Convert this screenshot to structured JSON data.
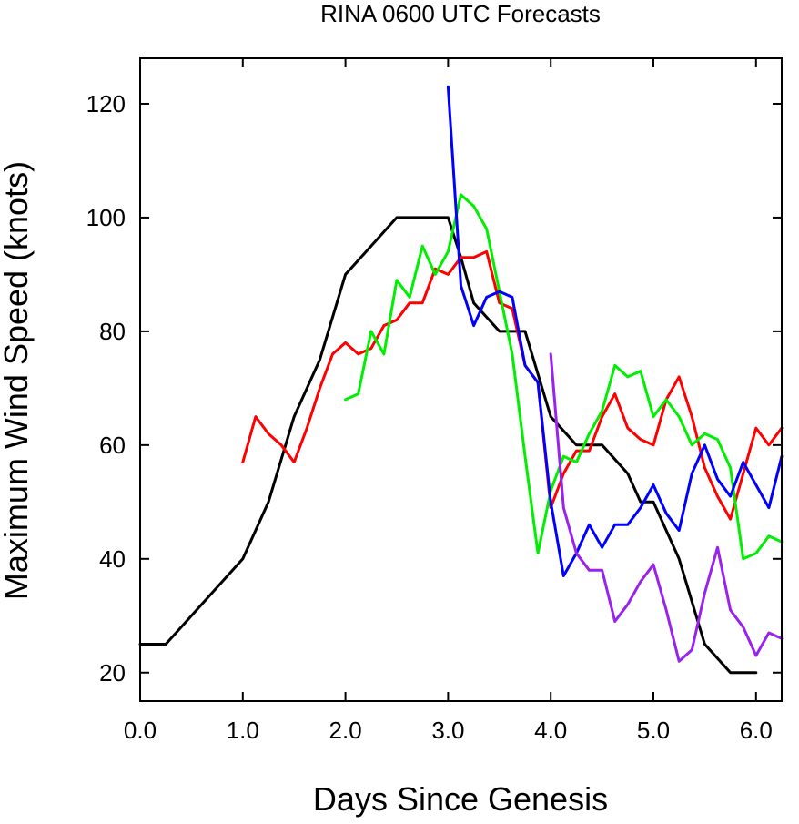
{
  "chart_data": {
    "type": "line",
    "title": "RINA 0600 UTC Forecasts",
    "xlabel": "Days Since Genesis",
    "ylabel": "Maximum Wind Speed (knots)",
    "xlim": [
      0,
      6.25
    ],
    "ylim": [
      15,
      128
    ],
    "x_ticks": [
      0,
      1,
      2,
      3,
      4,
      5,
      6
    ],
    "x_tick_labels": [
      "0.0",
      "1.0",
      "2.0",
      "3.0",
      "4.0",
      "5.0",
      "6.0"
    ],
    "y_ticks": [
      20,
      40,
      60,
      80,
      100,
      120
    ],
    "y_tick_labels": [
      "20",
      "40",
      "60",
      "80",
      "100",
      "120"
    ],
    "grid": false,
    "series": [
      {
        "color": "#000000",
        "x": [
          0,
          0.25,
          0.5,
          0.75,
          1.0,
          1.25,
          1.5,
          1.75,
          2.0,
          2.25,
          2.5,
          2.75,
          3.0,
          3.125,
          3.25,
          3.5,
          3.75,
          4.0,
          4.25,
          4.5,
          4.75,
          4.875,
          5.0,
          5.25,
          5.5,
          5.75,
          6.0
        ],
        "values": [
          25,
          25,
          30,
          35,
          40,
          50,
          65,
          75,
          90,
          95,
          100,
          100,
          100,
          93,
          85,
          80,
          80,
          65,
          60,
          60,
          55,
          50,
          50,
          40,
          25,
          20,
          20
        ]
      },
      {
        "color": "#ff0000",
        "x": [
          1.0,
          1.125,
          1.25,
          1.375,
          1.5,
          1.625,
          1.75,
          1.875,
          2.0,
          2.125,
          2.25,
          2.375,
          2.5,
          2.625,
          2.75,
          2.875,
          3.0,
          3.125,
          3.25,
          3.375,
          3.5,
          3.625,
          3.75,
          3.875,
          4.0,
          4.125,
          4.25,
          4.375,
          4.5,
          4.625,
          4.75,
          4.875,
          5.0,
          5.125,
          5.25,
          5.375,
          5.5,
          5.625,
          5.75,
          5.875,
          6.0,
          6.125,
          6.25
        ],
        "values": [
          57,
          65,
          62,
          60,
          57,
          63,
          70,
          76,
          78,
          76,
          77,
          81,
          82,
          85,
          85,
          91,
          90,
          93,
          93,
          94,
          85,
          84,
          74,
          71,
          49,
          55,
          59,
          59,
          65,
          69,
          63,
          61,
          60,
          68,
          72,
          65,
          56,
          51,
          47,
          55,
          63,
          60,
          63
        ]
      },
      {
        "color": "#00ee00",
        "x": [
          2.0,
          2.125,
          2.25,
          2.375,
          2.5,
          2.625,
          2.75,
          2.875,
          3.0,
          3.125,
          3.25,
          3.375,
          3.5,
          3.625,
          3.75,
          3.875,
          4.0,
          4.125,
          4.25,
          4.375,
          4.5,
          4.625,
          4.75,
          4.875,
          5.0,
          5.125,
          5.25,
          5.375,
          5.5,
          5.625,
          5.75,
          5.875,
          6.0,
          6.125,
          6.25
        ],
        "values": [
          68,
          69,
          80,
          76,
          89,
          86,
          95,
          90,
          94,
          104,
          102,
          98,
          87,
          76,
          58,
          41,
          52,
          58,
          57,
          62,
          66,
          74,
          72,
          73,
          65,
          68,
          65,
          60,
          62,
          61,
          56,
          40,
          41,
          44,
          43
        ]
      },
      {
        "color": "#0000ff",
        "x": [
          3.0,
          3.125,
          3.25,
          3.375,
          3.5,
          3.625,
          3.75,
          3.875,
          4.0,
          4.125,
          4.25,
          4.375,
          4.5,
          4.625,
          4.75,
          4.875,
          5.0,
          5.125,
          5.25,
          5.375,
          5.5,
          5.625,
          5.75,
          5.875,
          6.0,
          6.125,
          6.25
        ],
        "values": [
          123,
          88,
          81,
          86,
          87,
          86,
          74,
          71,
          50,
          37,
          41,
          46,
          42,
          46,
          46,
          49,
          53,
          48,
          45,
          55,
          60,
          54,
          51,
          57,
          53,
          49,
          58
        ]
      },
      {
        "color": "#9922ee",
        "x": [
          4.0,
          4.125,
          4.25,
          4.375,
          4.5,
          4.625,
          4.75,
          4.875,
          5.0,
          5.125,
          5.25,
          5.375,
          5.5,
          5.625,
          5.75,
          5.875,
          6.0,
          6.125,
          6.25
        ],
        "values": [
          76,
          49,
          41,
          38,
          38,
          29,
          32,
          36,
          39,
          31,
          22,
          24,
          34,
          42,
          31,
          28,
          23,
          27,
          26
        ]
      }
    ]
  }
}
